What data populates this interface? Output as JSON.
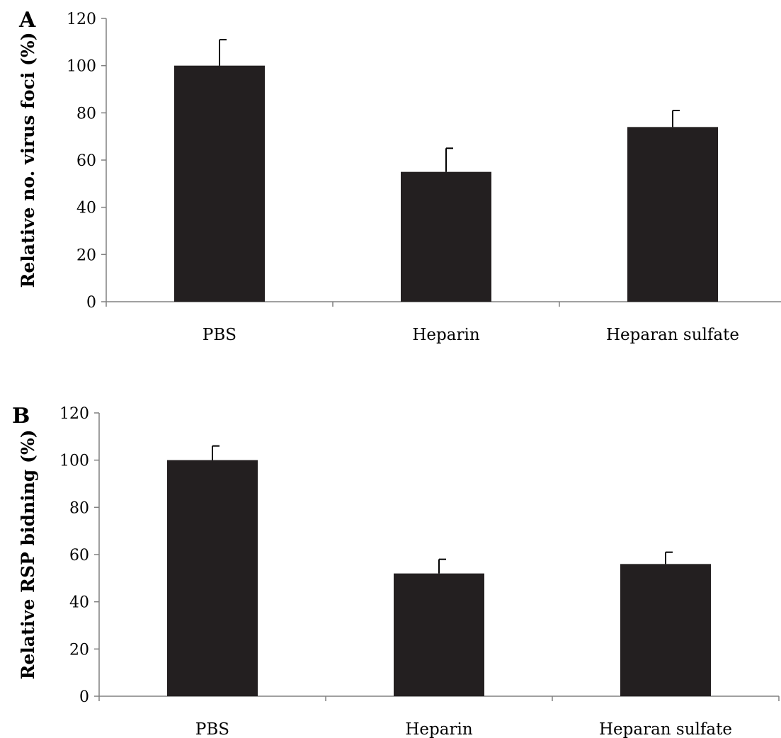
{
  "chart_data": [
    {
      "type": "bar",
      "panel_label": "A",
      "title": "",
      "xlabel": "",
      "ylabel": "Relative no. virus foci (%)",
      "categories": [
        "PBS",
        "Heparin",
        "Heparan sulfate"
      ],
      "values": [
        100,
        55,
        74
      ],
      "error": [
        11,
        10,
        7
      ],
      "ylim": [
        0,
        120
      ],
      "yticks": [
        0,
        20,
        40,
        60,
        80,
        100,
        120
      ],
      "grid": false,
      "bar_color": "#231f20"
    },
    {
      "type": "bar",
      "panel_label": "B",
      "title": "",
      "xlabel": "",
      "ylabel": "Relative RSP bidning (%)",
      "categories": [
        "PBS",
        "Heparin",
        "Heparan sulfate"
      ],
      "values": [
        100,
        52,
        56
      ],
      "error": [
        6,
        6,
        5
      ],
      "ylim": [
        0,
        120
      ],
      "yticks": [
        0,
        20,
        40,
        60,
        80,
        100,
        120
      ],
      "grid": false,
      "bar_color": "#231f20"
    }
  ]
}
